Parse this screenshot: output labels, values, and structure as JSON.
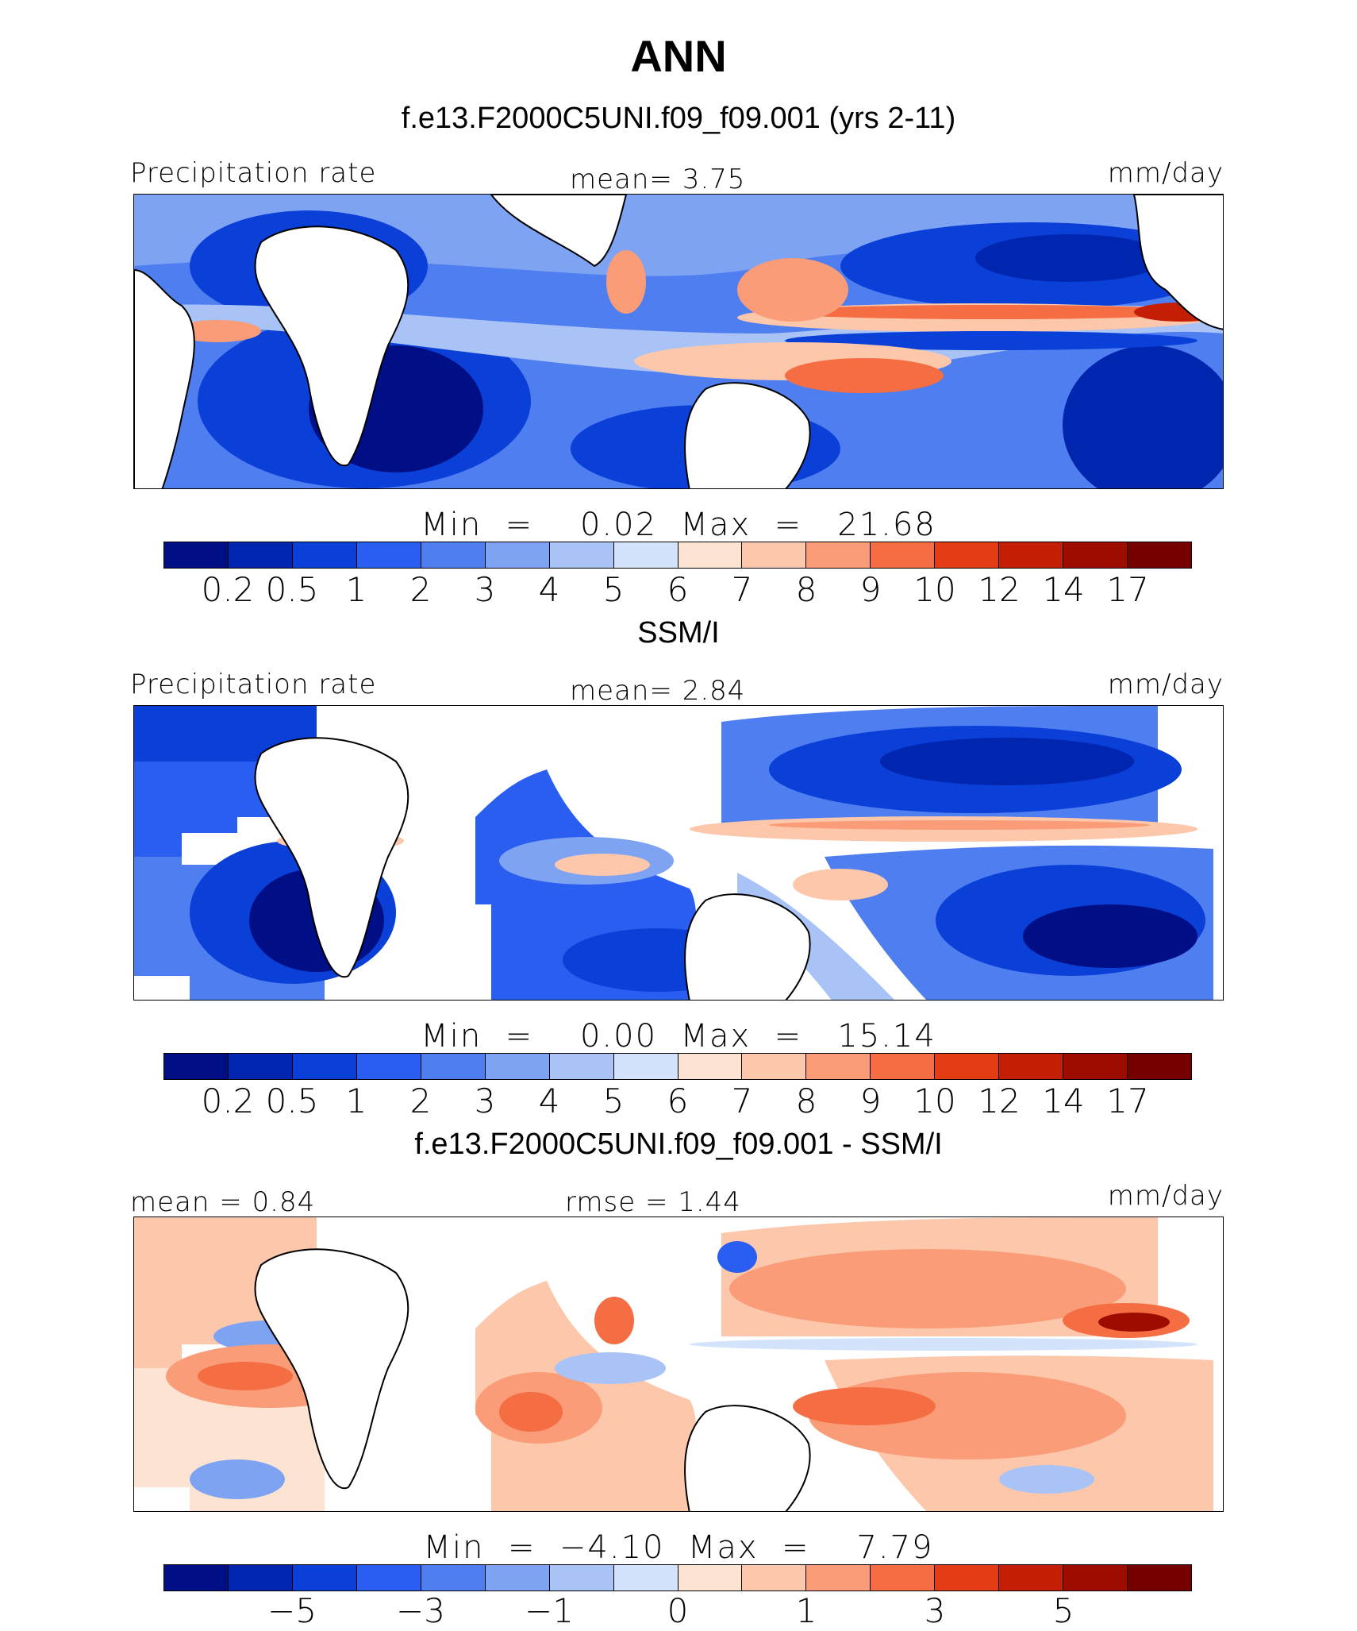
{
  "title": "ANN",
  "panels": [
    {
      "heading": "f.e13.F2000C5UNI.f09_f09.001 (yrs 2-11)",
      "left_label": "Precipitation rate",
      "center_label": "mean=    3.75",
      "right_label": "mm/day",
      "minmax": "Min  =    0.02  Max  =   21.68",
      "colorbar_ticks": [
        "0.2",
        "0.5",
        "1",
        "2",
        "3",
        "4",
        "5",
        "6",
        "7",
        "8",
        "9",
        "10",
        "12",
        "14",
        "17"
      ]
    },
    {
      "heading": "SSM/I",
      "left_label": "Precipitation rate",
      "center_label": "mean=    2.84",
      "right_label": "mm/day",
      "minmax": "Min  =    0.00  Max  =   15.14",
      "colorbar_ticks": [
        "0.2",
        "0.5",
        "1",
        "2",
        "3",
        "4",
        "5",
        "6",
        "7",
        "8",
        "9",
        "10",
        "12",
        "14",
        "17"
      ]
    },
    {
      "heading": "f.e13.F2000C5UNI.f09_f09.001 - SSM/I",
      "left_label": "mean  =    0.84",
      "center_label": "rmse  =    1.44",
      "right_label": "mm/day",
      "minmax": "Min  =  −4.10  Max  =    7.79",
      "colorbar_ticks": [
        "−5",
        "−3",
        "−1",
        "0",
        "1",
        "3",
        "5"
      ]
    }
  ],
  "colors": {
    "palette": [
      "#000f85",
      "#0026b0",
      "#0a3fd8",
      "#2a5ef0",
      "#4f7ef0",
      "#7fa3f3",
      "#a9c3f7",
      "#d2e3fb",
      "#fde4d2",
      "#fcc7ab",
      "#f99c77",
      "#f46d43",
      "#e43d16",
      "#c41e05",
      "#9e0c00",
      "#760000"
    ],
    "land": "#ffffff",
    "coast": "#000000"
  }
}
